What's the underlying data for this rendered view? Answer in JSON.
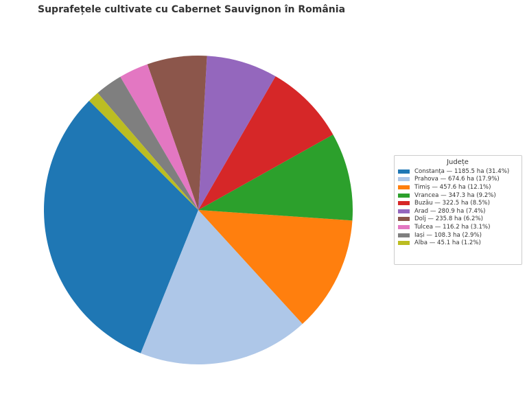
{
  "chart_data": {
    "type": "pie",
    "title": "Suprafețele cultivate cu Cabernet Sauvignon în România",
    "legend_title": "Județe",
    "legend_position": "right",
    "start_angle_deg": 135,
    "direction": "counterclockwise",
    "slices": [
      {
        "label": "Constanța — 1185.5 ha (31.4%)",
        "category": "Constanța",
        "value": 1185.5,
        "percent": 31.4,
        "color": "#1f77b4"
      },
      {
        "label": "Prahova — 674.6 ha (17.9%)",
        "category": "Prahova",
        "value": 674.6,
        "percent": 17.9,
        "color": "#aec7e8"
      },
      {
        "label": "Timiș — 457.6 ha (12.1%)",
        "category": "Timiș",
        "value": 457.6,
        "percent": 12.1,
        "color": "#ff7f0e"
      },
      {
        "label": "Vrancea — 347.3 ha (9.2%)",
        "category": "Vrancea",
        "value": 347.3,
        "percent": 9.2,
        "color": "#2ca02c"
      },
      {
        "label": "Buzău — 322.5 ha (8.5%)",
        "category": "Buzău",
        "value": 322.5,
        "percent": 8.5,
        "color": "#d62728"
      },
      {
        "label": "Arad — 280.9 ha (7.4%)",
        "category": "Arad",
        "value": 280.9,
        "percent": 7.4,
        "color": "#9467bd"
      },
      {
        "label": "Dolj — 235.8 ha (6.2%)",
        "category": "Dolj",
        "value": 235.8,
        "percent": 6.2,
        "color": "#8c564b"
      },
      {
        "label": "Tulcea — 116.2 ha (3.1%)",
        "category": "Tulcea",
        "value": 116.2,
        "percent": 3.1,
        "color": "#e377c2"
      },
      {
        "label": "Iași — 108.3 ha (2.9%)",
        "category": "Iași",
        "value": 108.3,
        "percent": 2.9,
        "color": "#7f7f7f"
      },
      {
        "label": "Alba — 45.1 ha (1.2%)",
        "category": "Alba",
        "value": 45.1,
        "percent": 1.2,
        "color": "#bcbd22"
      }
    ]
  }
}
